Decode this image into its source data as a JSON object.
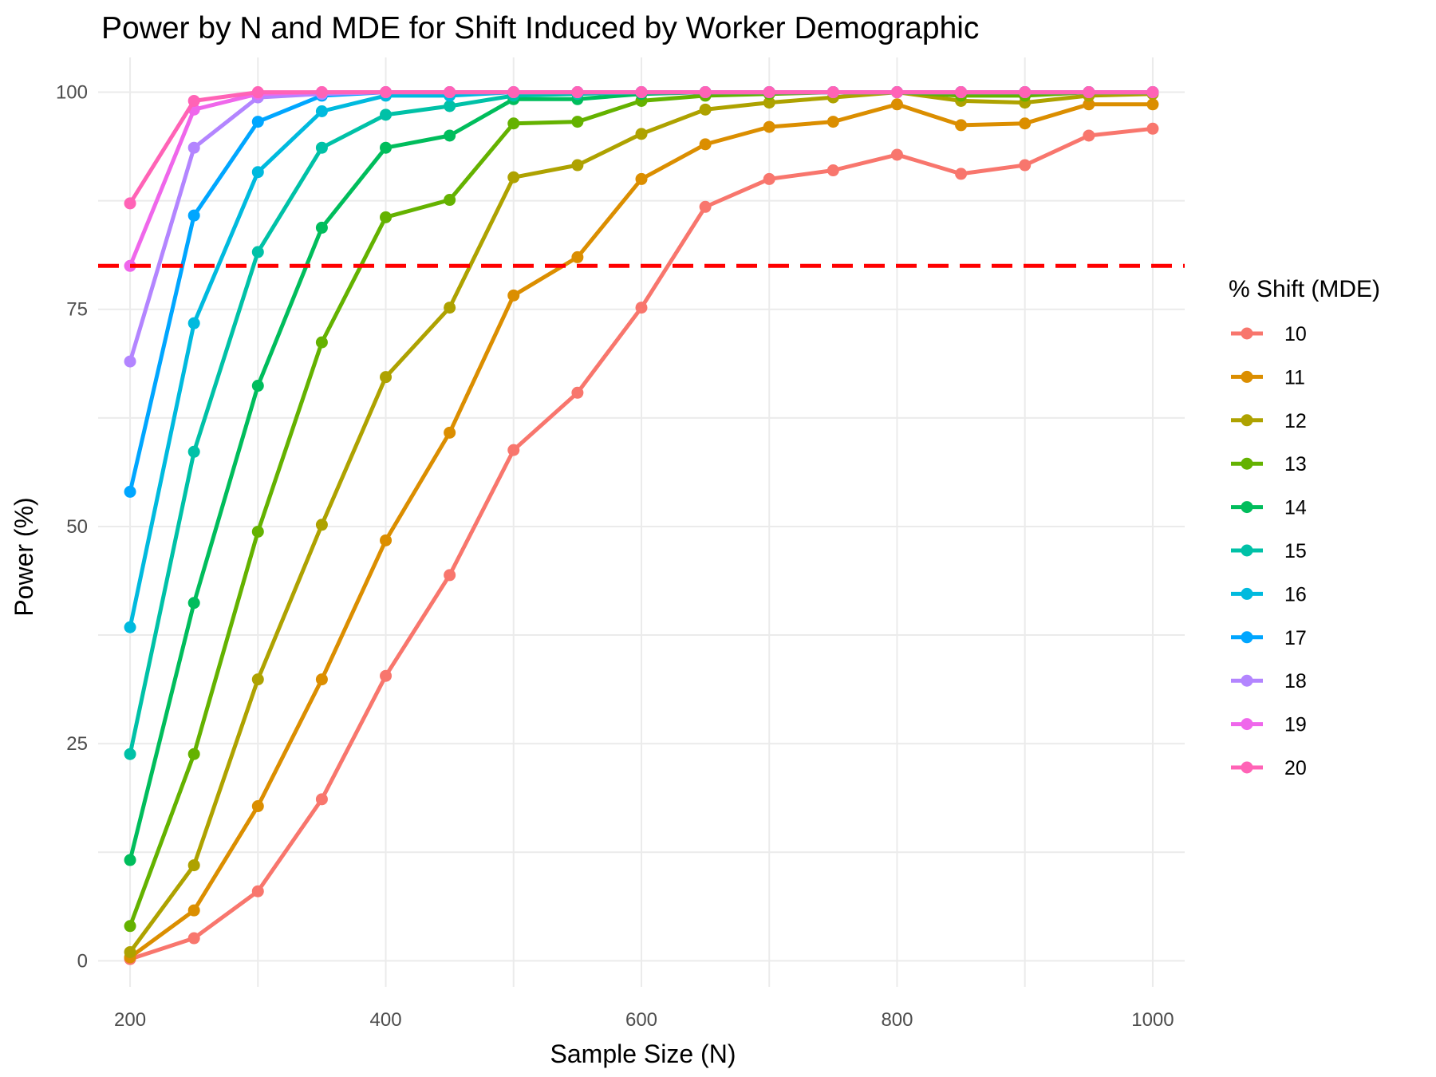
{
  "chart_data": {
    "type": "line",
    "title": "Power by N and MDE for Shift Induced by Worker Demographic",
    "xlabel": "Sample Size (N)",
    "ylabel": "Power (%)",
    "xlim": [
      175,
      1025
    ],
    "ylim": [
      -3,
      104
    ],
    "x_ticks": [
      200,
      400,
      600,
      800,
      1000
    ],
    "y_ticks": [
      0,
      25,
      50,
      75,
      100
    ],
    "x_tick_labels": [
      "200",
      "400",
      "600",
      "800",
      "1000"
    ],
    "y_tick_labels": [
      "0",
      "25",
      "50",
      "75",
      "100"
    ],
    "grid": true,
    "legend_title": "% Shift (MDE)",
    "legend_position": "right",
    "reference_line": {
      "y": 80,
      "color": "#ff0000",
      "style": "dashed"
    },
    "x": [
      200,
      250,
      300,
      350,
      400,
      450,
      500,
      550,
      600,
      650,
      700,
      750,
      800,
      850,
      900,
      950,
      1000
    ],
    "series": [
      {
        "name": "10",
        "color": "#F8766D",
        "values": [
          0.2,
          2.6,
          8.0,
          18.6,
          32.8,
          44.4,
          58.8,
          65.4,
          75.2,
          86.8,
          90.0,
          91.0,
          92.8,
          90.6,
          91.6,
          95.0,
          95.8
        ]
      },
      {
        "name": "11",
        "color": "#DB8E00",
        "values": [
          0.4,
          5.8,
          17.8,
          32.4,
          48.4,
          60.8,
          76.6,
          81.0,
          90.0,
          94.0,
          96.0,
          96.6,
          98.6,
          96.2,
          96.4,
          98.6,
          98.6
        ]
      },
      {
        "name": "12",
        "color": "#AEA200",
        "values": [
          1.0,
          11.0,
          32.4,
          50.2,
          67.2,
          75.2,
          90.2,
          91.6,
          95.2,
          98.0,
          98.8,
          99.4,
          100,
          99.0,
          98.8,
          99.6,
          99.8
        ]
      },
      {
        "name": "13",
        "color": "#64B200",
        "values": [
          4.0,
          23.8,
          49.4,
          71.2,
          85.6,
          87.6,
          96.4,
          96.6,
          99.0,
          99.6,
          99.8,
          100,
          100,
          99.6,
          99.6,
          100,
          100
        ]
      },
      {
        "name": "14",
        "color": "#00BD5C",
        "values": [
          11.6,
          41.2,
          66.2,
          84.4,
          93.6,
          95.0,
          99.2,
          99.2,
          99.8,
          100,
          100,
          100,
          100,
          100,
          100,
          100,
          100
        ]
      },
      {
        "name": "15",
        "color": "#00C1A7",
        "values": [
          23.8,
          58.6,
          81.6,
          93.6,
          97.4,
          98.4,
          99.6,
          99.8,
          100,
          100,
          100,
          100,
          100,
          100,
          100,
          100,
          100
        ]
      },
      {
        "name": "16",
        "color": "#00BADE",
        "values": [
          38.4,
          73.4,
          90.8,
          97.8,
          99.6,
          99.6,
          100,
          100,
          100,
          100,
          100,
          100,
          100,
          100,
          100,
          100,
          100
        ]
      },
      {
        "name": "17",
        "color": "#00A6FF",
        "values": [
          54.0,
          85.8,
          96.6,
          99.6,
          100,
          100,
          100,
          100,
          100,
          100,
          100,
          100,
          100,
          100,
          100,
          100,
          100
        ]
      },
      {
        "name": "18",
        "color": "#B385FF",
        "values": [
          69.0,
          93.6,
          99.4,
          99.8,
          100,
          100,
          100,
          100,
          100,
          100,
          100,
          100,
          100,
          100,
          100,
          100,
          100
        ]
      },
      {
        "name": "19",
        "color": "#EF67EB",
        "values": [
          80.0,
          98.0,
          99.8,
          100,
          100,
          100,
          100,
          100,
          100,
          100,
          100,
          100,
          100,
          100,
          100,
          100,
          100
        ]
      },
      {
        "name": "20",
        "color": "#FF63B6",
        "values": [
          87.2,
          99.0,
          100,
          100,
          100,
          100,
          100,
          100,
          100,
          100,
          100,
          100,
          100,
          100,
          100,
          100,
          100
        ]
      }
    ]
  }
}
